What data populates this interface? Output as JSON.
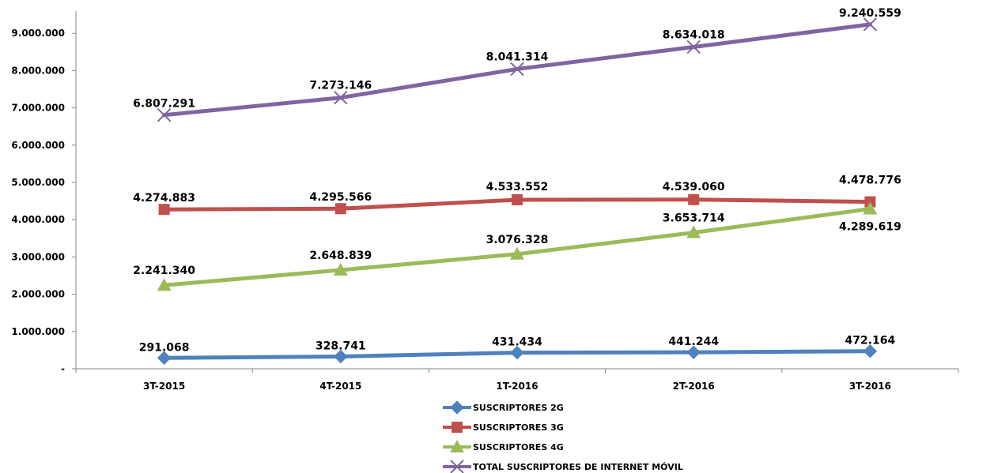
{
  "chart_data": {
    "type": "line",
    "title": "",
    "xlabel": "",
    "ylabel": "",
    "categories": [
      "3T-2015",
      "4T-2015",
      "1T-2016",
      "2T-2016",
      "3T-2016"
    ],
    "yticks": [
      "-",
      "1.000.000",
      "2.000.000",
      "3.000.000",
      "4.000.000",
      "5.000.000",
      "6.000.000",
      "7.000.000",
      "8.000.000",
      "9.000.000"
    ],
    "ylim": [
      0,
      9500000
    ],
    "grid": false,
    "legend_position": "bottom",
    "series": [
      {
        "name": "SUSCRIPTORES 2G",
        "color": "#4F81BD",
        "marker": "diamond",
        "values": [
          291068,
          328741,
          431434,
          441244,
          472164
        ],
        "labels": [
          "291.068",
          "328.741",
          "431.434",
          "441.244",
          "472.164"
        ]
      },
      {
        "name": "SUSCRIPTORES 3G",
        "color": "#C0504D",
        "marker": "square",
        "values": [
          4274883,
          4295566,
          4533552,
          4539060,
          4478776
        ],
        "labels": [
          "4.274.883",
          "4.295.566",
          "4.533.552",
          "4.539.060",
          "4.478.776"
        ]
      },
      {
        "name": "SUSCRIPTORES 4G",
        "color": "#9BBB59",
        "marker": "triangle",
        "values": [
          2241340,
          2648839,
          3076328,
          3653714,
          4289619
        ],
        "labels": [
          "2.241.340",
          "2.648.839",
          "3.076.328",
          "3.653.714",
          "4.289.619"
        ]
      },
      {
        "name": "TOTAL SUSCRIPTORES DE INTERNET MÓVIL",
        "color": "#8064A2",
        "marker": "x",
        "values": [
          6807291,
          7273146,
          8041314,
          8634018,
          9240559
        ],
        "labels": [
          "6.807.291",
          "7.273.146",
          "8.041.314",
          "8.634.018",
          "9.240.559"
        ]
      }
    ]
  }
}
